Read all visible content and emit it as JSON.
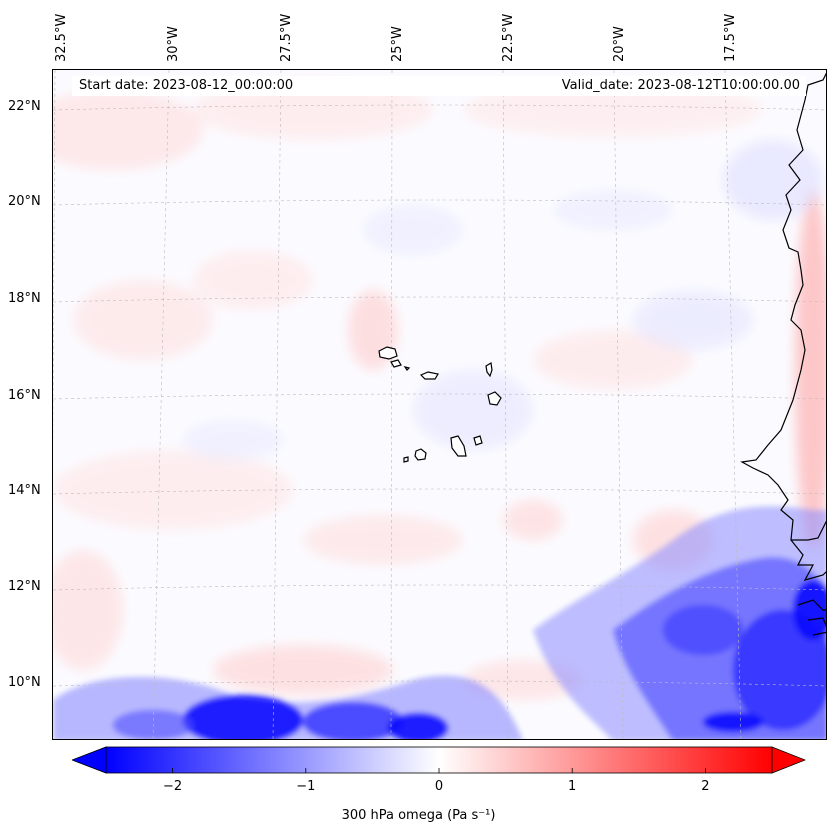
{
  "map": {
    "start_date_text": "Start date: 2023-08-12_00:00:00",
    "valid_date_text": "Valid_date: 2023-08-12T10:00:00.00",
    "longitude_labels": [
      "32.5°W",
      "30°W",
      "27.5°W",
      "25°W",
      "22.5°W",
      "20°W",
      "17.5°W"
    ],
    "latitude_labels": [
      "22°N",
      "20°N",
      "18°N",
      "16°N",
      "14°N",
      "12°N",
      "10°N"
    ],
    "variable": "300 hPa omega",
    "units": "Pa s⁻¹",
    "region": "Cape Verde Islands and West African coast"
  },
  "colorbar": {
    "label": "300 hPa omega (Pa s⁻¹)",
    "ticks": [
      "−2",
      "−1",
      "0",
      "1",
      "2"
    ],
    "tick_values": [
      -2,
      -1,
      0,
      1,
      2
    ],
    "range": [
      -2.5,
      2.5
    ],
    "extend": "both",
    "colormap": "bwr",
    "colors": {
      "negative": "#0000ff",
      "zero": "#ffffff",
      "positive": "#ff0000"
    }
  }
}
